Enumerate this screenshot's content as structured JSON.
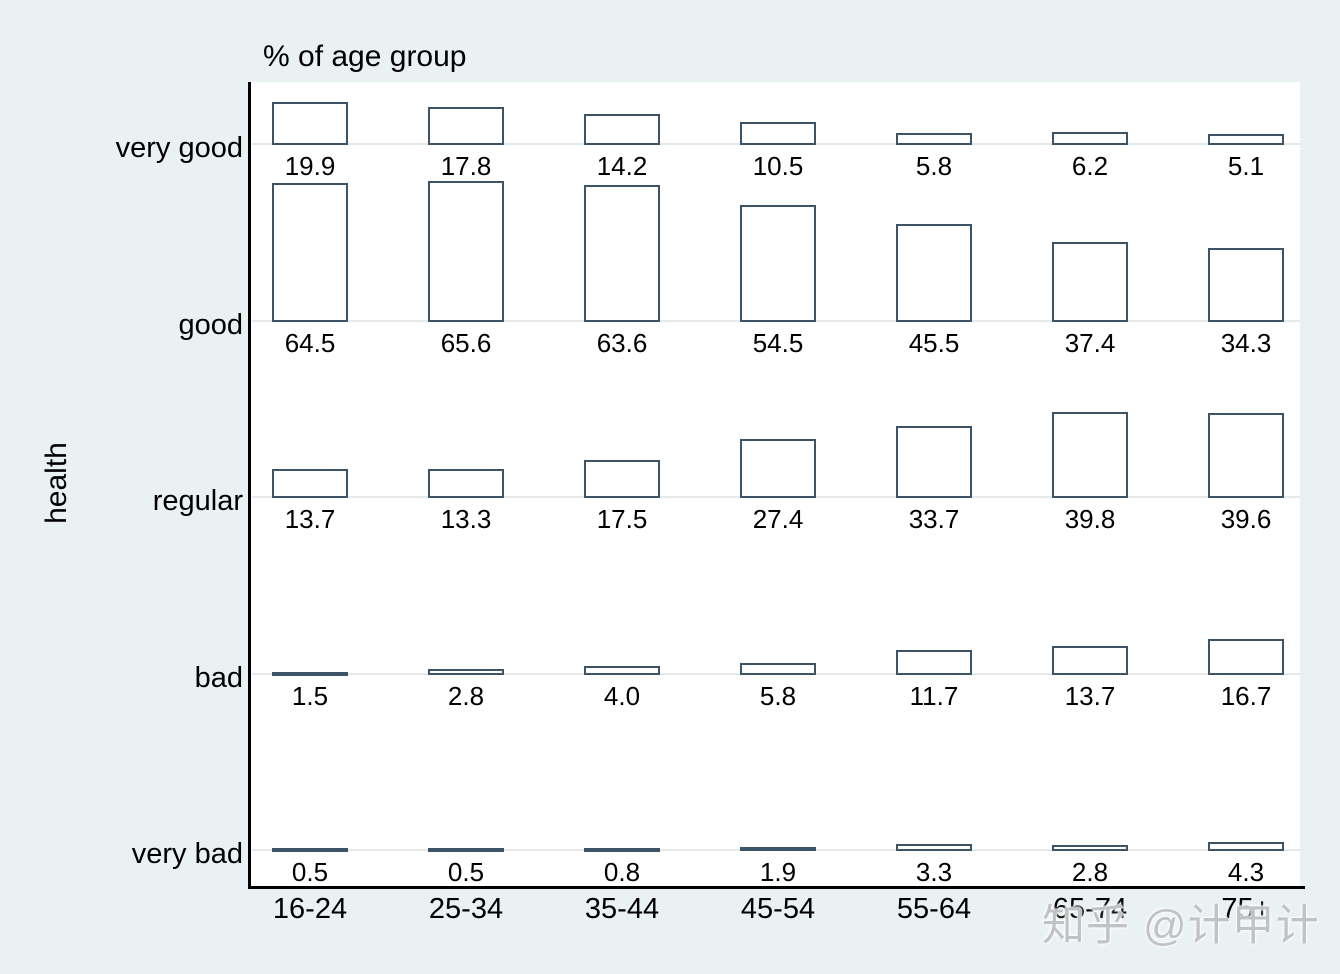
{
  "title": "% of age group",
  "y_axis_title": "health",
  "watermark": "知乎 @计甲计",
  "colors": {
    "background": "#EAF1F2",
    "plot_background": "#FFFFFF",
    "axis_line": "#000000",
    "gridline": "#E5E9EA",
    "bar_outline": "#3C5468",
    "bar_fill": "#FFFFFF",
    "text": "#000000",
    "watermark": "#C0C3C4"
  },
  "chart_data": {
    "type": "bar",
    "layout": "grid-of-bars (health categories as rows, age groups as columns)",
    "title": "% of age group",
    "xlabel": "",
    "ylabel": "health",
    "grid": true,
    "legend_position": "none",
    "categories": [
      "16-24",
      "25-34",
      "35-44",
      "45-54",
      "55-64",
      "65-74",
      "75+"
    ],
    "row_categories": [
      "very good",
      "good",
      "regular",
      "bad",
      "very bad"
    ],
    "row_scale_max_percent": 80,
    "series": [
      {
        "name": "very good",
        "values": [
          19.9,
          17.8,
          14.2,
          10.5,
          5.8,
          6.2,
          5.1
        ],
        "labels": [
          "19.9",
          "17.8",
          "14.2",
          "10.5",
          "5.8",
          "6.2",
          "5.1"
        ]
      },
      {
        "name": "good",
        "values": [
          64.5,
          65.6,
          63.6,
          54.5,
          45.5,
          37.4,
          34.3
        ],
        "labels": [
          "64.5",
          "65.6",
          "63.6",
          "54.5",
          "45.5",
          "37.4",
          "34.3"
        ]
      },
      {
        "name": "regular",
        "values": [
          13.7,
          13.3,
          17.5,
          27.4,
          33.7,
          39.8,
          39.6
        ],
        "labels": [
          "13.7",
          "13.3",
          "17.5",
          "27.4",
          "33.7",
          "39.8",
          "39.6"
        ]
      },
      {
        "name": "bad",
        "values": [
          1.5,
          2.8,
          4.0,
          5.8,
          11.7,
          13.7,
          16.7
        ],
        "labels": [
          "1.5",
          "2.8",
          "4.0",
          "5.8",
          "11.7",
          "13.7",
          "16.7"
        ]
      },
      {
        "name": "very bad",
        "values": [
          0.5,
          0.5,
          0.8,
          1.9,
          3.3,
          2.8,
          4.3
        ],
        "labels": [
          "0.5",
          "0.5",
          "0.8",
          "1.9",
          "3.3",
          "2.8",
          "4.3"
        ]
      }
    ]
  }
}
